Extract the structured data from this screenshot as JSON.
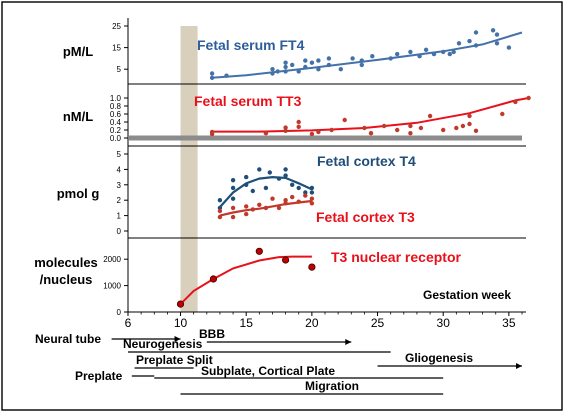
{
  "chart_data": [
    {
      "type": "scatter",
      "panel": "fetal-serum-ft4",
      "ylabel": "pM/L",
      "annotation": "Fetal serum FT4",
      "ylim": [
        0,
        25
      ],
      "y_ticks": [
        "25",
        "15",
        "5"
      ],
      "y_tick_values": [
        25,
        15,
        5
      ],
      "color": "#4472A8",
      "points": [
        [
          12.4,
          1
        ],
        [
          12.4,
          3
        ],
        [
          13.5,
          2
        ],
        [
          17,
          3
        ],
        [
          17,
          5
        ],
        [
          17.4,
          4
        ],
        [
          18,
          4
        ],
        [
          18,
          6
        ],
        [
          18,
          8
        ],
        [
          18.5,
          7
        ],
        [
          19,
          4
        ],
        [
          19.5,
          6
        ],
        [
          19.5,
          9
        ],
        [
          20,
          8
        ],
        [
          20.5,
          5
        ],
        [
          20.5,
          9
        ],
        [
          21.3,
          7
        ],
        [
          21.3,
          10
        ],
        [
          22.2,
          5
        ],
        [
          23.1,
          10
        ],
        [
          23.8,
          7
        ],
        [
          23.8,
          9
        ],
        [
          24.6,
          11
        ],
        [
          26,
          10
        ],
        [
          26.5,
          12
        ],
        [
          27.5,
          13
        ],
        [
          28.2,
          11
        ],
        [
          28.7,
          14
        ],
        [
          29.3,
          12
        ],
        [
          30,
          13
        ],
        [
          30.5,
          12
        ],
        [
          30.8,
          13
        ],
        [
          31.2,
          17
        ],
        [
          32,
          18
        ],
        [
          32.5,
          22
        ],
        [
          32.5,
          16
        ],
        [
          33.8,
          23
        ],
        [
          34.1,
          21
        ],
        [
          34.1,
          17
        ],
        [
          35,
          15
        ]
      ],
      "trend": [
        [
          12.4,
          1
        ],
        [
          15,
          2.2
        ],
        [
          20,
          5.6
        ],
        [
          25,
          9.3
        ],
        [
          30,
          13.3
        ],
        [
          33,
          16.5
        ],
        [
          36,
          22
        ]
      ]
    },
    {
      "type": "scatter",
      "panel": "fetal-serum-tt3",
      "ylabel": "nM/L",
      "annotation": "Fetal serum TT3",
      "ylim": [
        0,
        1.0
      ],
      "y_ticks": [
        "1.0",
        "0.8",
        "0.6",
        "0.4",
        "0.2",
        "0.0"
      ],
      "y_tick_values": [
        1.0,
        0.8,
        0.6,
        0.4,
        0.2,
        0.0
      ],
      "color": "#C0392B",
      "points": [
        [
          12.4,
          0.1
        ],
        [
          12.4,
          0.15
        ],
        [
          16.5,
          0.12
        ],
        [
          18,
          0.18
        ],
        [
          18,
          0.26
        ],
        [
          19,
          0.28
        ],
        [
          19,
          0.4
        ],
        [
          20,
          0.1
        ],
        [
          20.5,
          0.15
        ],
        [
          21.5,
          0.2
        ],
        [
          22.5,
          0.45
        ],
        [
          24,
          0.25
        ],
        [
          24.5,
          0.12
        ],
        [
          25.5,
          0.3
        ],
        [
          26.5,
          0.2
        ],
        [
          27.5,
          0.3
        ],
        [
          27.5,
          0.12
        ],
        [
          28.3,
          0.25
        ],
        [
          29,
          0.55
        ],
        [
          30,
          0.2
        ],
        [
          31,
          0.25
        ],
        [
          31.5,
          0.3
        ],
        [
          32,
          0.35
        ],
        [
          32,
          0.55
        ],
        [
          32.5,
          0.18
        ],
        [
          34.5,
          0.6
        ],
        [
          35.5,
          0.9
        ],
        [
          36.5,
          1.0
        ]
      ],
      "trend": [
        [
          12.4,
          0.16
        ],
        [
          16,
          0.16
        ],
        [
          20,
          0.19
        ],
        [
          24,
          0.25
        ],
        [
          28,
          0.38
        ],
        [
          32,
          0.62
        ],
        [
          35.5,
          0.94
        ],
        [
          36.5,
          1.0
        ]
      ]
    },
    {
      "type": "scatter",
      "panel": "fetal-cortex",
      "ylabel": "pmol g",
      "ylim": [
        0,
        5
      ],
      "y_ticks": [
        "5",
        "4",
        "3",
        "2",
        "1",
        "0"
      ],
      "y_tick_values": [
        5,
        4,
        3,
        2,
        1,
        0
      ],
      "series": [
        {
          "name": "Fetal cortex T4",
          "color": "#1F4E79",
          "points": [
            [
              13,
              1.5
            ],
            [
              13,
              2
            ],
            [
              14,
              2.1
            ],
            [
              14,
              2.8
            ],
            [
              14,
              3.3
            ],
            [
              15,
              3.5
            ],
            [
              15,
              3
            ],
            [
              15.5,
              2.6
            ],
            [
              16,
              4
            ],
            [
              16.5,
              2.8
            ],
            [
              16.8,
              3.8
            ],
            [
              17.5,
              3.4
            ],
            [
              18,
              4
            ],
            [
              18,
              3.6
            ],
            [
              18.5,
              3
            ],
            [
              19,
              2.8
            ],
            [
              19.5,
              2.5
            ],
            [
              20,
              2.8
            ],
            [
              20,
              2.5
            ]
          ],
          "trend": [
            [
              13,
              1.55
            ],
            [
              14,
              2.5
            ],
            [
              15,
              3.1
            ],
            [
              16,
              3.4
            ],
            [
              17,
              3.5
            ],
            [
              18,
              3.45
            ],
            [
              19,
              3.1
            ],
            [
              20,
              2.7
            ]
          ]
        },
        {
          "name": "Fetal cortex T3",
          "color": "#C0392B",
          "points": [
            [
              13,
              0.9
            ],
            [
              13,
              1.3
            ],
            [
              14,
              1.5
            ],
            [
              14,
              0.9
            ],
            [
              15,
              1.6
            ],
            [
              15,
              1.1
            ],
            [
              15.5,
              1.4
            ],
            [
              16,
              1.7
            ],
            [
              16.5,
              1.5
            ],
            [
              17,
              2.1
            ],
            [
              17.5,
              1.5
            ],
            [
              18,
              2
            ],
            [
              18,
              1.8
            ],
            [
              18.5,
              2.2
            ],
            [
              19,
              1.9
            ],
            [
              19.5,
              2.3
            ],
            [
              20,
              2.1
            ],
            [
              20,
              1.8
            ]
          ],
          "trend": [
            [
              13,
              1.0
            ],
            [
              14,
              1.2
            ],
            [
              15,
              1.35
            ],
            [
              16,
              1.45
            ],
            [
              17,
              1.6
            ],
            [
              18,
              1.75
            ],
            [
              19,
              1.85
            ],
            [
              20,
              1.95
            ]
          ]
        }
      ]
    },
    {
      "type": "scatter",
      "panel": "t3-nuclear-receptor",
      "ylabel_lines": [
        "molecules",
        "/nucleus"
      ],
      "annotation": "T3 nuclear receptor",
      "xlabel": "Gestation week",
      "ylim": [
        0,
        2500
      ],
      "y_ticks": [
        "2000",
        "1000",
        "0"
      ],
      "y_tick_values": [
        2000,
        1000,
        0
      ],
      "x_ticks": [
        "6",
        "10",
        "15",
        "20",
        "25",
        "30",
        "35"
      ],
      "x_tick_values": [
        6,
        10,
        15,
        20,
        25,
        30,
        35
      ],
      "xlim": [
        6,
        36
      ],
      "color": "#C00000",
      "points": [
        [
          10,
          300
        ],
        [
          12.5,
          1250
        ],
        [
          16,
          2300
        ],
        [
          18,
          1970
        ],
        [
          20,
          1700
        ]
      ],
      "trend": [
        [
          10,
          300
        ],
        [
          11,
          800
        ],
        [
          12.5,
          1250
        ],
        [
          14,
          1650
        ],
        [
          16,
          1950
        ],
        [
          17.5,
          2080
        ],
        [
          18.5,
          2100
        ],
        [
          20,
          2100
        ]
      ]
    }
  ],
  "highlight_band": [
    10,
    11.3
  ],
  "timeline": [
    {
      "label": "Neural tube",
      "start": 6,
      "end": 10
    },
    {
      "label": "BBB",
      "start": 12,
      "end": 23
    },
    {
      "label": "Neurogenesis",
      "start": 6,
      "end": 26
    },
    {
      "label": "Preplate Split",
      "start": 6.5,
      "end": 11
    },
    {
      "label": "Gliogenesis",
      "start": 25,
      "end": 36
    },
    {
      "label": "Preplate",
      "start": 6.5,
      "end": 8
    },
    {
      "label": "Subplate, Cortical Plate",
      "start": 8,
      "end": 30
    },
    {
      "label": "Migration",
      "start": 10,
      "end": 30
    }
  ]
}
